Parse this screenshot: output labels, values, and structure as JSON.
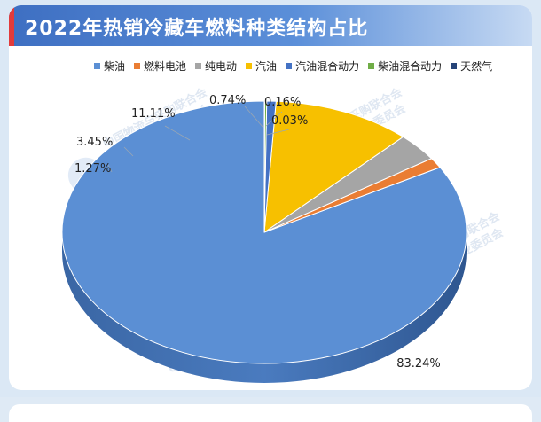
{
  "header": {
    "title": "2022年热销冷藏车燃料种类结构占比"
  },
  "watermark": {
    "line1": "中国物流与采购联合会",
    "line2": "冷链物流专业委员会",
    "logo_text": "CFLP"
  },
  "chart_data": {
    "type": "pie",
    "title": "2022年热销冷藏车燃料种类结构占比",
    "style": "3d",
    "legend_position": "top",
    "categories": [
      "柴油",
      "燃料电池",
      "纯电动",
      "汽油",
      "汽油混合动力",
      "柴油混合动力",
      "天然气"
    ],
    "values": [
      83.24,
      1.27,
      3.45,
      11.11,
      0.74,
      0.16,
      0.03
    ],
    "data_labels": [
      "83.24%",
      "1.27%",
      "3.45%",
      "11.11%",
      "0.74%",
      "0.16%",
      "0.03%"
    ],
    "colors": [
      "#5b8fd4",
      "#ea7d33",
      "#a5a5a5",
      "#f7c000",
      "#4472c4",
      "#70ad47",
      "#264478"
    ]
  }
}
